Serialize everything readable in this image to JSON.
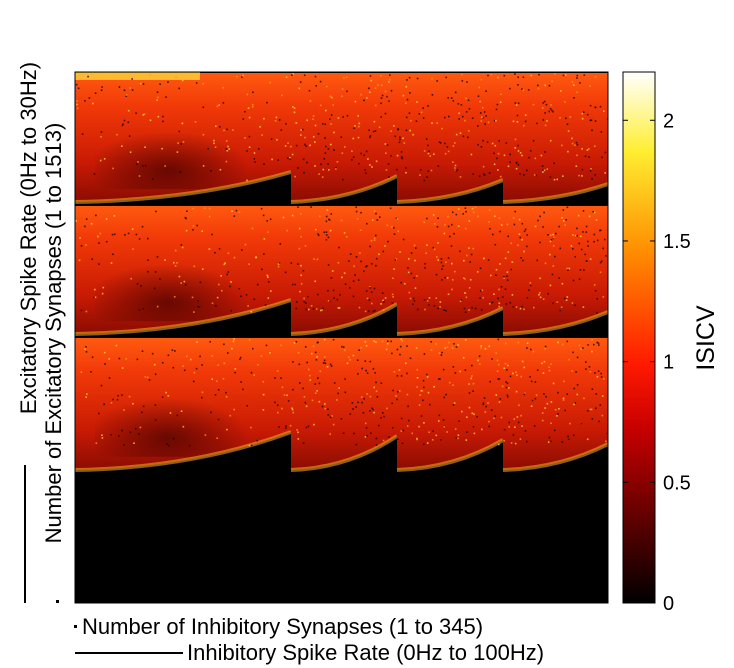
{
  "chart_data": {
    "type": "heatmap",
    "title": "",
    "xlabel_inner": "Number of Inhibitory Synapses (1 to 345)",
    "xlabel_outer": "Inhibitory Spike Rate (0Hz to 100Hz)",
    "ylabel_outer": "Excitatory Spike Rate (0Hz to 30Hz)",
    "ylabel_inner": "Number of Excitatory Synapses (1 to 1513)",
    "grid": {
      "columns": 5,
      "rows": 3,
      "region_below_blocks": "black (ISICV = 0)"
    },
    "colorbar": {
      "label": "ISICV",
      "colormap": "hot",
      "range": [
        0,
        2.2
      ],
      "ticks": [
        0,
        0.5,
        1,
        1.5,
        2
      ],
      "tick_labels": [
        "0",
        "0.5",
        "1",
        "1.5",
        "2"
      ]
    }
  }
}
